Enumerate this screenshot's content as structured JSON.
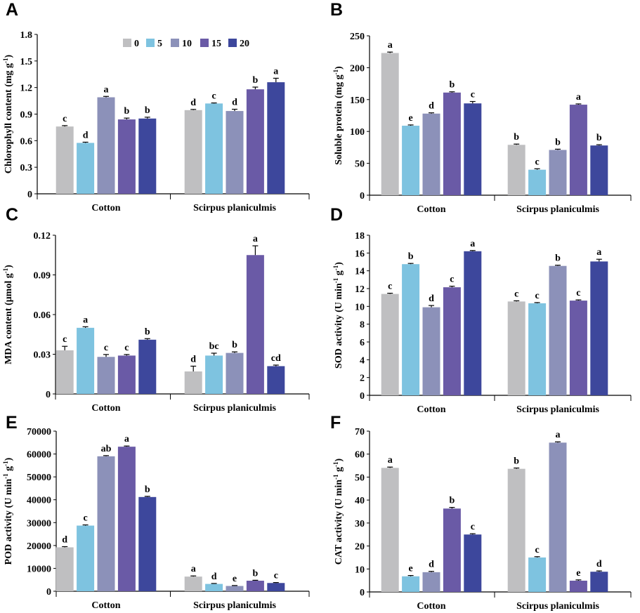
{
  "series_colors": [
    "#bfbfc1",
    "#7ec3e0",
    "#8c91b9",
    "#6a5aa6",
    "#3d479c"
  ],
  "legend": {
    "labels": [
      "0",
      "5",
      "10",
      "15",
      "20"
    ]
  },
  "chart_data": [
    {
      "type": "bar",
      "panel": "A",
      "ylabel": "Chlorophyll content (mg g-1)",
      "categories": [
        "Cotton",
        "Scirpus planiculmis"
      ],
      "ylim": [
        0,
        1.8
      ],
      "yticks": [
        "0",
        "0.3",
        "0.6",
        "0.9",
        "1.2",
        "1.5",
        "1.8"
      ],
      "series": [
        {
          "name": "0",
          "values": [
            0.76,
            0.945
          ],
          "errors": [
            0.01,
            0.008
          ],
          "letters": [
            "c",
            "d"
          ]
        },
        {
          "name": "5",
          "values": [
            0.575,
            1.02
          ],
          "errors": [
            0.008,
            0.006
          ],
          "letters": [
            "d",
            "c"
          ]
        },
        {
          "name": "10",
          "values": [
            1.09,
            0.935
          ],
          "errors": [
            0.01,
            0.02
          ],
          "letters": [
            "a",
            "d"
          ]
        },
        {
          "name": "15",
          "values": [
            0.84,
            1.18
          ],
          "errors": [
            0.015,
            0.025
          ],
          "letters": [
            "b",
            "b"
          ]
        },
        {
          "name": "20",
          "values": [
            0.85,
            1.26
          ],
          "errors": [
            0.015,
            0.045
          ],
          "letters": [
            "b",
            "a"
          ]
        }
      ]
    },
    {
      "type": "bar",
      "panel": "B",
      "ylabel": "Soluble protein (mg g-1)",
      "categories": [
        "Cotton",
        "Scirpus planiculmis"
      ],
      "ylim": [
        0,
        250
      ],
      "yticks": [
        "0",
        "50",
        "100",
        "150",
        "200",
        "250"
      ],
      "series": [
        {
          "name": "0",
          "values": [
            223,
            79
          ],
          "errors": [
            1.5,
            1.2
          ],
          "letters": [
            "a",
            "b"
          ]
        },
        {
          "name": "5",
          "values": [
            109,
            40
          ],
          "errors": [
            1.2,
            1.5
          ],
          "letters": [
            "e",
            "c"
          ]
        },
        {
          "name": "10",
          "values": [
            128,
            71
          ],
          "errors": [
            1.2,
            1.2
          ],
          "letters": [
            "d",
            "b"
          ]
        },
        {
          "name": "15",
          "values": [
            161,
            142
          ],
          "errors": [
            1.2,
            1.2
          ],
          "letters": [
            "b",
            "a"
          ]
        },
        {
          "name": "20",
          "values": [
            144,
            78
          ],
          "errors": [
            3,
            1.2
          ],
          "letters": [
            "c",
            "b"
          ]
        }
      ]
    },
    {
      "type": "bar",
      "panel": "C",
      "ylabel": "MDA content (μmol g-1)",
      "categories": [
        "Cotton",
        "Scirpus planiculmis"
      ],
      "ylim": [
        0,
        0.12
      ],
      "yticks": [
        "0",
        "0.03",
        "0.06",
        "0.09",
        "0.12"
      ],
      "series": [
        {
          "name": "0",
          "values": [
            0.033,
            0.017
          ],
          "errors": [
            0.003,
            0.004
          ],
          "letters": [
            "c",
            "d"
          ]
        },
        {
          "name": "5",
          "values": [
            0.05,
            0.029
          ],
          "errors": [
            0.0008,
            0.0018
          ],
          "letters": [
            "a",
            "bc"
          ]
        },
        {
          "name": "10",
          "values": [
            0.028,
            0.031
          ],
          "errors": [
            0.0018,
            0.0008
          ],
          "letters": [
            "c",
            "b"
          ]
        },
        {
          "name": "15",
          "values": [
            0.029,
            0.105
          ],
          "errors": [
            0.0008,
            0.007
          ],
          "letters": [
            "c",
            "a"
          ]
        },
        {
          "name": "20",
          "values": [
            0.041,
            0.021
          ],
          "errors": [
            0.0008,
            0.0008
          ],
          "letters": [
            "b",
            "cd"
          ]
        }
      ]
    },
    {
      "type": "bar",
      "panel": "D",
      "ylabel": "SOD activity (U min-1 g-1)",
      "categories": [
        "Cotton",
        "Scirpus planiculmis"
      ],
      "ylim": [
        0,
        18
      ],
      "yticks": [
        "0",
        "2",
        "4",
        "6",
        "8",
        "10",
        "12",
        "14",
        "16",
        "18"
      ],
      "series": [
        {
          "name": "0",
          "values": [
            11.4,
            10.55
          ],
          "errors": [
            0.08,
            0.08
          ],
          "letters": [
            "c",
            "c"
          ]
        },
        {
          "name": "5",
          "values": [
            14.75,
            10.35
          ],
          "errors": [
            0.08,
            0.08
          ],
          "letters": [
            "b",
            "c"
          ]
        },
        {
          "name": "10",
          "values": [
            9.9,
            14.55
          ],
          "errors": [
            0.2,
            0.08
          ],
          "letters": [
            "d",
            "b"
          ]
        },
        {
          "name": "15",
          "values": [
            12.15,
            10.65
          ],
          "errors": [
            0.12,
            0.08
          ],
          "letters": [
            "c",
            "c"
          ]
        },
        {
          "name": "20",
          "values": [
            16.2,
            15.05
          ],
          "errors": [
            0.08,
            0.25
          ],
          "letters": [
            "a",
            "a"
          ]
        }
      ]
    },
    {
      "type": "bar",
      "panel": "E",
      "ylabel": "POD activity (U min-1 g-1)",
      "categories": [
        "Cotton",
        "Scirpus planiculmis"
      ],
      "ylim": [
        0,
        70000
      ],
      "yticks": [
        "0",
        "10000",
        "20000",
        "30000",
        "40000",
        "50000",
        "60000",
        "70000"
      ],
      "series": [
        {
          "name": "0",
          "values": [
            19200,
            6400
          ],
          "errors": [
            300,
            300
          ],
          "letters": [
            "d",
            "a"
          ]
        },
        {
          "name": "5",
          "values": [
            28700,
            3200
          ],
          "errors": [
            300,
            200
          ],
          "letters": [
            "c",
            "d"
          ]
        },
        {
          "name": "10",
          "values": [
            59000,
            2300
          ],
          "errors": [
            300,
            200
          ],
          "letters": [
            "ab",
            "e"
          ]
        },
        {
          "name": "15",
          "values": [
            63200,
            4600
          ],
          "errors": [
            300,
            200
          ],
          "letters": [
            "a",
            "b"
          ]
        },
        {
          "name": "20",
          "values": [
            41200,
            3600
          ],
          "errors": [
            300,
            200
          ],
          "letters": [
            "b",
            "c"
          ]
        }
      ]
    },
    {
      "type": "bar",
      "panel": "F",
      "ylabel": "CAT activity (U min-1 g-1)",
      "categories": [
        "Cotton",
        "Scirpus planiculmis"
      ],
      "ylim": [
        0,
        70
      ],
      "yticks": [
        "0",
        "10",
        "20",
        "30",
        "40",
        "50",
        "60",
        "70"
      ],
      "series": [
        {
          "name": "0",
          "values": [
            54,
            53.6
          ],
          "errors": [
            0.35,
            0.35
          ],
          "letters": [
            "a",
            "b"
          ]
        },
        {
          "name": "5",
          "values": [
            6.8,
            15
          ],
          "errors": [
            0.35,
            0.35
          ],
          "letters": [
            "e",
            "c"
          ]
        },
        {
          "name": "10",
          "values": [
            8.6,
            65
          ],
          "errors": [
            0.35,
            0.35
          ],
          "letters": [
            "d",
            "a"
          ]
        },
        {
          "name": "15",
          "values": [
            36.3,
            4.9
          ],
          "errors": [
            0.5,
            0.35
          ],
          "letters": [
            "b",
            "e"
          ]
        },
        {
          "name": "20",
          "values": [
            25,
            8.8
          ],
          "errors": [
            0.35,
            0.35
          ],
          "letters": [
            "c",
            "d"
          ]
        }
      ]
    }
  ]
}
